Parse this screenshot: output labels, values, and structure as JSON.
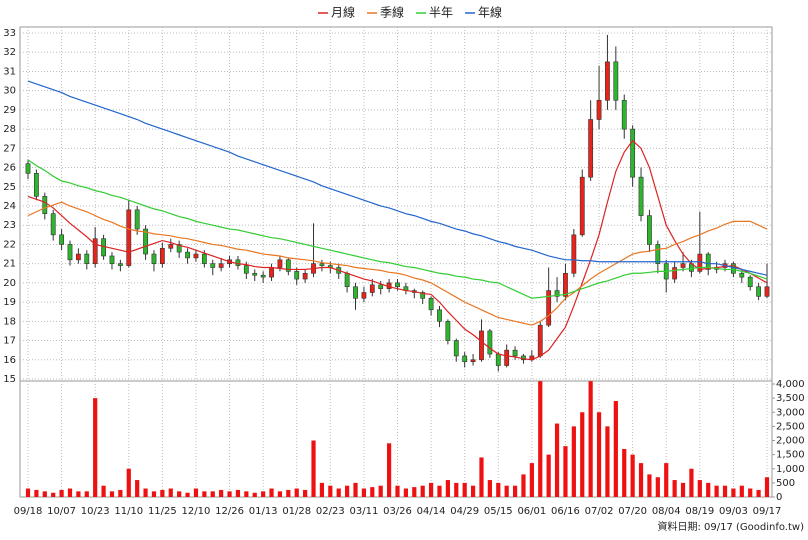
{
  "chart_data": {
    "type": "candlestick",
    "categories": [
      "09/18",
      null,
      null,
      null,
      "10/07",
      null,
      null,
      null,
      "10/23",
      null,
      null,
      null,
      "11/10",
      null,
      null,
      null,
      "11/25",
      null,
      null,
      null,
      "12/10",
      null,
      null,
      null,
      "12/26",
      null,
      null,
      null,
      "01/13",
      null,
      null,
      null,
      "01/28",
      null,
      null,
      null,
      "02/23",
      null,
      null,
      null,
      "03/11",
      null,
      null,
      null,
      "03/26",
      null,
      null,
      null,
      "04/14",
      null,
      null,
      null,
      "04/29",
      null,
      null,
      null,
      "05/15",
      null,
      null,
      null,
      "06/01",
      null,
      null,
      null,
      "06/16",
      null,
      null,
      null,
      "07/02",
      null,
      null,
      null,
      "07/20",
      null,
      null,
      null,
      "08/04",
      null,
      null,
      null,
      "08/19",
      null,
      null,
      null,
      "09/03",
      null,
      null,
      null,
      "09/17"
    ],
    "open": [
      26.2,
      25.7,
      24.5,
      23.6,
      22.5,
      22.0,
      21.2,
      21.5,
      21.0,
      22.3,
      21.4,
      21.0,
      20.9,
      23.8,
      22.8,
      21.5,
      21.0,
      21.8,
      22.0,
      21.6,
      21.3,
      21.5,
      21.0,
      20.8,
      21.0,
      21.2,
      20.9,
      20.5,
      20.4,
      20.3,
      20.8,
      21.2,
      20.6,
      20.2,
      20.5,
      21.0,
      20.9,
      20.8,
      20.5,
      19.8,
      19.2,
      19.5,
      19.9,
      19.7,
      20.0,
      19.8,
      19.6,
      19.5,
      19.2,
      18.6,
      18.0,
      17.0,
      16.2,
      15.9,
      16.0,
      17.5,
      16.3,
      15.7,
      16.5,
      16.2,
      16.0,
      16.2,
      17.8,
      19.6,
      19.3,
      20.5,
      22.5,
      25.5,
      28.5,
      29.5,
      31.5,
      29.5,
      28.0,
      25.5,
      23.5,
      22.0,
      21.0,
      20.2,
      20.8,
      21.0,
      20.6,
      21.5,
      20.7,
      20.8,
      21.0,
      20.5,
      20.3,
      19.8,
      19.3
    ],
    "high": [
      26.4,
      25.9,
      24.7,
      23.8,
      22.8,
      22.2,
      21.8,
      21.7,
      22.9,
      22.5,
      21.6,
      21.2,
      24.3,
      24.0,
      23.0,
      21.7,
      22.1,
      22.3,
      22.2,
      21.8,
      21.7,
      21.7,
      21.2,
      21.3,
      21.4,
      21.4,
      21.1,
      20.7,
      20.6,
      21.0,
      21.4,
      21.3,
      20.8,
      20.7,
      23.1,
      21.2,
      21.1,
      21.0,
      20.6,
      20.0,
      19.8,
      20.2,
      20.1,
      20.2,
      20.2,
      20.0,
      19.7,
      19.6,
      19.3,
      18.8,
      18.1,
      17.1,
      16.4,
      16.3,
      18.1,
      17.6,
      16.4,
      16.8,
      16.7,
      16.3,
      16.5,
      18.0,
      20.8,
      20.3,
      21.0,
      22.8,
      25.9,
      29.5,
      31.3,
      32.9,
      32.3,
      29.8,
      28.2,
      26.0,
      23.8,
      22.2,
      21.2,
      21.1,
      21.6,
      21.2,
      23.7,
      21.6,
      21.1,
      21.2,
      21.1,
      20.7,
      20.4,
      20.0,
      21.0
    ],
    "low": [
      25.4,
      24.3,
      23.3,
      22.2,
      21.7,
      20.9,
      21.0,
      20.7,
      20.8,
      21.2,
      20.7,
      20.6,
      20.8,
      22.5,
      21.2,
      20.6,
      20.8,
      21.6,
      21.3,
      21.0,
      21.1,
      20.8,
      20.4,
      20.6,
      20.8,
      20.7,
      20.2,
      20.1,
      20.0,
      20.1,
      20.6,
      20.4,
      19.9,
      20.0,
      20.3,
      20.6,
      20.5,
      20.2,
      19.5,
      18.6,
      19.0,
      19.3,
      19.4,
      19.5,
      19.6,
      19.4,
      19.2,
      18.9,
      18.3,
      17.7,
      16.8,
      15.9,
      15.6,
      15.7,
      15.9,
      16.1,
      15.4,
      15.6,
      16.0,
      15.8,
      15.9,
      16.1,
      17.7,
      19.0,
      19.1,
      20.3,
      22.4,
      25.3,
      28.0,
      29.0,
      29.0,
      27.5,
      25.0,
      23.2,
      21.6,
      20.5,
      19.5,
      20.0,
      20.6,
      20.3,
      20.5,
      20.4,
      20.5,
      20.6,
      20.3,
      20.0,
      19.6,
      19.1,
      19.2
    ],
    "close": [
      25.7,
      24.5,
      23.6,
      22.5,
      22.0,
      21.2,
      21.5,
      21.0,
      22.3,
      21.4,
      21.0,
      20.9,
      23.8,
      22.8,
      21.5,
      21.0,
      21.8,
      22.0,
      21.6,
      21.3,
      21.5,
      21.0,
      20.8,
      21.0,
      21.2,
      20.9,
      20.5,
      20.4,
      20.3,
      20.8,
      21.2,
      20.6,
      20.2,
      20.5,
      21.0,
      20.9,
      20.8,
      20.5,
      19.8,
      19.2,
      19.5,
      19.9,
      19.7,
      20.0,
      19.8,
      19.6,
      19.5,
      19.2,
      18.6,
      18.0,
      17.0,
      16.2,
      15.9,
      16.0,
      17.5,
      16.3,
      15.7,
      16.5,
      16.2,
      16.0,
      16.2,
      17.8,
      19.6,
      19.3,
      20.5,
      22.5,
      25.5,
      28.5,
      29.5,
      31.5,
      29.5,
      28.0,
      25.5,
      23.5,
      22.0,
      21.0,
      20.2,
      20.8,
      21.0,
      20.6,
      21.5,
      20.7,
      20.8,
      21.0,
      20.5,
      20.3,
      19.8,
      19.3,
      19.8
    ],
    "volume": [
      300,
      250,
      200,
      150,
      250,
      300,
      200,
      200,
      3500,
      400,
      200,
      250,
      1000,
      600,
      300,
      200,
      250,
      300,
      200,
      150,
      300,
      200,
      200,
      250,
      200,
      250,
      200,
      150,
      200,
      300,
      200,
      250,
      300,
      250,
      2000,
      500,
      400,
      300,
      400,
      500,
      300,
      350,
      400,
      1900,
      400,
      300,
      350,
      400,
      500,
      400,
      600,
      500,
      500,
      400,
      1400,
      600,
      500,
      400,
      400,
      800,
      1200,
      4100,
      1500,
      2600,
      1800,
      2500,
      3000,
      4100,
      3000,
      2500,
      3400,
      1700,
      1500,
      1200,
      800,
      700,
      1200,
      600,
      500,
      1000,
      600,
      500,
      400,
      400,
      300,
      400,
      300,
      250,
      700
    ],
    "up_color": "#e8231b",
    "down_color": "#2db52d",
    "volume_color": "#ee1111",
    "series": [
      {
        "name": "月線",
        "color": "#dd2222",
        "values": [
          24.5,
          24.35,
          24.2,
          23.9,
          23.5,
          23.1,
          22.75,
          22.4,
          22.0,
          21.9,
          21.8,
          21.7,
          21.6,
          21.75,
          21.9,
          22.05,
          22.2,
          22.1,
          21.95,
          21.85,
          21.7,
          21.55,
          21.4,
          21.25,
          21.1,
          21.0,
          20.95,
          20.85,
          20.8,
          20.8,
          20.75,
          20.7,
          20.7,
          20.7,
          20.75,
          20.8,
          20.8,
          20.65,
          20.5,
          20.35,
          20.2,
          20.1,
          19.95,
          19.8,
          19.7,
          19.6,
          19.55,
          19.45,
          19.4,
          19.0,
          18.5,
          18.05,
          17.6,
          17.3,
          16.95,
          16.6,
          16.3,
          16.2,
          16.15,
          16.05,
          16.0,
          16.2,
          16.5,
          17.1,
          17.7,
          18.8,
          20.0,
          21.2,
          22.5,
          24.2,
          25.8,
          26.8,
          27.4,
          27.0,
          26.0,
          24.5,
          23.0,
          22.2,
          21.5,
          21.0,
          20.7,
          20.75,
          20.8,
          20.85,
          20.9,
          20.7,
          20.5,
          20.25,
          20.0
        ]
      },
      {
        "name": "季線",
        "color": "#e87722",
        "values": [
          23.5,
          23.7,
          23.9,
          24.05,
          24.2,
          24.0,
          23.85,
          23.7,
          23.5,
          23.3,
          23.15,
          22.95,
          22.8,
          22.7,
          22.65,
          22.55,
          22.5,
          22.45,
          22.35,
          22.3,
          22.2,
          22.1,
          22.0,
          21.95,
          21.85,
          21.75,
          21.7,
          21.6,
          21.5,
          21.45,
          21.4,
          21.3,
          21.25,
          21.2,
          21.15,
          21.05,
          21.0,
          20.95,
          20.9,
          20.8,
          20.75,
          20.7,
          20.65,
          20.55,
          20.5,
          20.4,
          20.25,
          20.15,
          20.0,
          19.75,
          19.5,
          19.25,
          19.0,
          18.8,
          18.6,
          18.4,
          18.2,
          18.1,
          18.0,
          17.9,
          17.8,
          18.0,
          18.3,
          18.7,
          19.2,
          19.5,
          19.85,
          20.2,
          20.5,
          20.75,
          21.0,
          21.25,
          21.5,
          21.6,
          21.65,
          21.75,
          21.8,
          22.0,
          22.15,
          22.35,
          22.5,
          22.7,
          22.85,
          23.05,
          23.2,
          23.2,
          23.2,
          23.0,
          22.8
        ]
      },
      {
        "name": "半年",
        "color": "#33cc33",
        "values": [
          26.4,
          26.1,
          25.85,
          25.55,
          25.3,
          25.2,
          25.05,
          24.95,
          24.8,
          24.7,
          24.55,
          24.45,
          24.3,
          24.15,
          24.0,
          23.85,
          23.75,
          23.6,
          23.45,
          23.35,
          23.2,
          23.1,
          23.0,
          22.9,
          22.8,
          22.75,
          22.65,
          22.55,
          22.45,
          22.35,
          22.3,
          22.2,
          22.1,
          22.0,
          21.9,
          21.8,
          21.7,
          21.6,
          21.5,
          21.4,
          21.3,
          21.2,
          21.1,
          21.05,
          20.95,
          20.85,
          20.8,
          20.7,
          20.6,
          20.5,
          20.45,
          20.35,
          20.3,
          20.2,
          20.15,
          20.05,
          20.0,
          19.8,
          19.6,
          19.4,
          19.2,
          19.25,
          19.3,
          19.35,
          19.4,
          19.55,
          19.7,
          19.85,
          20.0,
          20.1,
          20.25,
          20.4,
          20.5,
          20.5,
          20.55,
          20.6,
          20.6,
          20.65,
          20.7,
          20.75,
          20.8,
          20.8,
          20.75,
          20.7,
          20.7,
          20.6,
          20.5,
          20.35,
          20.2
        ]
      },
      {
        "name": "年線",
        "color": "#2266cc",
        "values": [
          30.5,
          30.35,
          30.2,
          30.05,
          29.9,
          29.7,
          29.55,
          29.4,
          29.25,
          29.1,
          28.95,
          28.8,
          28.65,
          28.5,
          28.3,
          28.15,
          28.0,
          27.85,
          27.7,
          27.55,
          27.4,
          27.25,
          27.1,
          26.95,
          26.8,
          26.6,
          26.45,
          26.3,
          26.15,
          26.0,
          25.85,
          25.7,
          25.55,
          25.4,
          25.25,
          25.05,
          24.9,
          24.75,
          24.6,
          24.45,
          24.3,
          24.15,
          24.0,
          23.9,
          23.75,
          23.6,
          23.5,
          23.35,
          23.2,
          23.1,
          22.95,
          22.8,
          22.7,
          22.55,
          22.45,
          22.3,
          22.15,
          22.05,
          21.9,
          21.8,
          21.7,
          21.55,
          21.4,
          21.3,
          21.2,
          21.2,
          21.15,
          21.15,
          21.1,
          21.1,
          21.1,
          21.1,
          21.1,
          21.1,
          21.1,
          21.1,
          21.1,
          21.1,
          21.1,
          21.1,
          21.1,
          21.0,
          21.0,
          20.9,
          20.8,
          20.7,
          20.6,
          20.5,
          20.4
        ]
      }
    ],
    "ylim": [
      15,
      33
    ],
    "yticks": [
      15,
      16,
      17,
      18,
      19,
      20,
      21,
      22,
      23,
      24,
      25,
      26,
      27,
      28,
      29,
      30,
      31,
      32,
      33
    ],
    "y2lim": [
      0,
      4000
    ],
    "y2ticks": [
      0,
      500,
      {
        "value": 1000,
        "label": "1,000"
      },
      {
        "value": 1500,
        "label": "1,500"
      },
      {
        "value": 2000,
        "label": "2,000"
      },
      {
        "value": 2500,
        "label": "2,500"
      },
      {
        "value": 3000,
        "label": "3,000"
      },
      {
        "value": 3500,
        "label": "3,500"
      },
      {
        "value": 4000,
        "label": "4,000"
      }
    ],
    "grid": true,
    "legend": "top",
    "footnote": "資料日期: 09/17  (Goodinfo.tw)"
  }
}
